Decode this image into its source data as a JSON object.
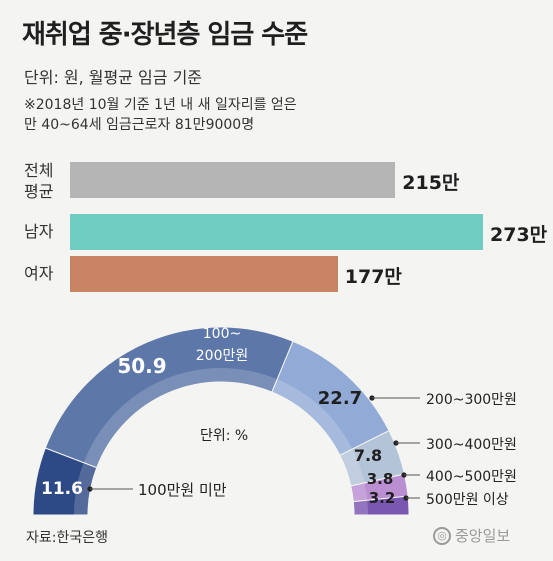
{
  "title": "재취업 중·장년층 임금 수준",
  "subtitle_unit": "단위: 원, 월평균 임금 기준",
  "subtitle_note_line1": "※2018년 10월 기준 1년 내 새 일자리를 얻은",
  "subtitle_note_line2": "만 40~64세 임금근로자 81만9000명",
  "source": "자료:한국은행",
  "logo_text": "중앙일보",
  "chart_data": [
    {
      "type": "bar",
      "orientation": "horizontal",
      "categories": [
        "전체\n평균",
        "남자",
        "여자"
      ],
      "category_lines": [
        [
          "전체",
          "평균"
        ],
        [
          "남자"
        ],
        [
          "여자"
        ]
      ],
      "values": [
        215,
        273,
        177
      ],
      "value_labels": [
        "215만",
        "273만",
        "177만"
      ],
      "unit": "만원",
      "colors": [
        "#b5b5b5",
        "#6fcdc2",
        "#c88463"
      ],
      "xlim": [
        0,
        273
      ]
    },
    {
      "type": "pie",
      "shape": "half-donut",
      "unit_label": "단위: %",
      "categories": [
        "100만원 미만",
        "100~200만원",
        "200~300만원",
        "300~400만원",
        "400~500만원",
        "500만원 이상"
      ],
      "category_label_lines": [
        [
          "100만원 미만"
        ],
        [
          "100~",
          "200만원"
        ],
        [
          "200~300만원"
        ],
        [
          "300~400만원"
        ],
        [
          "400~500만원"
        ],
        [
          "500만원 이상"
        ]
      ],
      "values": [
        11.6,
        50.9,
        22.7,
        7.8,
        3.8,
        3.2
      ],
      "value_labels": [
        "11.6",
        "50.9",
        "22.7",
        "7.8",
        "3.8",
        "3.2"
      ],
      "colors": [
        "#2e4a86",
        "#5c77a8",
        "#92abd6",
        "#b4c4d8",
        "#b98fd2",
        "#7a57b0"
      ]
    }
  ]
}
